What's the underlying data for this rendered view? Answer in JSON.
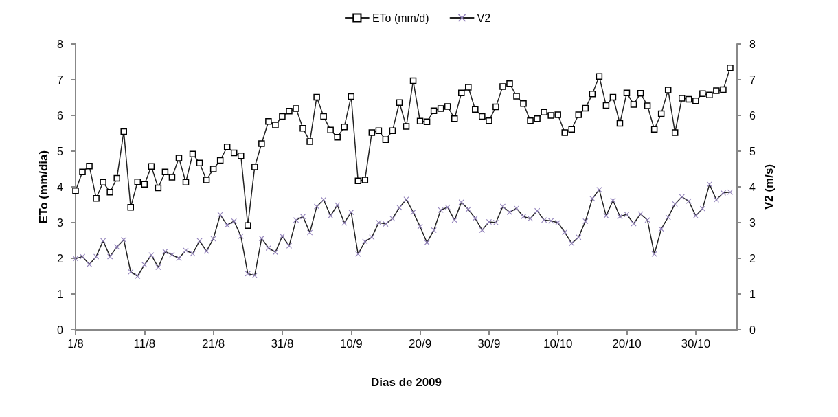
{
  "chart_data": {
    "type": "line",
    "xlabel": "Dias de 2009",
    "ylabel": "ETo (mm/dia)",
    "y2label": "V2 (m/s)",
    "x": [
      "2009-08-01",
      "2009-08-02",
      "2009-08-03",
      "2009-08-04",
      "2009-08-05",
      "2009-08-06",
      "2009-08-07",
      "2009-08-08",
      "2009-08-09",
      "2009-08-10",
      "2009-08-11",
      "2009-08-12",
      "2009-08-13",
      "2009-08-14",
      "2009-08-15",
      "2009-08-16",
      "2009-08-17",
      "2009-08-18",
      "2009-08-19",
      "2009-08-20",
      "2009-08-21",
      "2009-08-22",
      "2009-08-23",
      "2009-08-24",
      "2009-08-25",
      "2009-08-26",
      "2009-08-27",
      "2009-08-28",
      "2009-08-29",
      "2009-08-30",
      "2009-08-31",
      "2009-09-01",
      "2009-09-02",
      "2009-09-03",
      "2009-09-04",
      "2009-09-05",
      "2009-09-06",
      "2009-09-07",
      "2009-09-08",
      "2009-09-09",
      "2009-09-10",
      "2009-09-11",
      "2009-09-12",
      "2009-09-13",
      "2009-09-14",
      "2009-09-15",
      "2009-09-16",
      "2009-09-17",
      "2009-09-18",
      "2009-09-19",
      "2009-09-20",
      "2009-09-21",
      "2009-09-22",
      "2009-09-23",
      "2009-09-24",
      "2009-09-25",
      "2009-09-26",
      "2009-09-27",
      "2009-09-28",
      "2009-09-29",
      "2009-09-30",
      "2009-10-01",
      "2009-10-02",
      "2009-10-03",
      "2009-10-04",
      "2009-10-05",
      "2009-10-06",
      "2009-10-07",
      "2009-10-08",
      "2009-10-09",
      "2009-10-10",
      "2009-10-11",
      "2009-10-12",
      "2009-10-13",
      "2009-10-14",
      "2009-10-15",
      "2009-10-16",
      "2009-10-17",
      "2009-10-18",
      "2009-10-19",
      "2009-10-20",
      "2009-10-21",
      "2009-10-22",
      "2009-10-23",
      "2009-10-24",
      "2009-10-25",
      "2009-10-26",
      "2009-10-27",
      "2009-10-28",
      "2009-10-29",
      "2009-10-30",
      "2009-10-31",
      "2009-11-01",
      "2009-11-02",
      "2009-11-03",
      "2009-11-04"
    ],
    "series": [
      {
        "name": "ETo (mm/d)",
        "color": "#000000",
        "marker": "square",
        "values": [
          3.89,
          4.42,
          4.58,
          3.68,
          4.13,
          3.85,
          4.24,
          5.55,
          3.43,
          4.14,
          4.07,
          4.57,
          3.97,
          4.42,
          4.27,
          4.81,
          4.13,
          4.92,
          4.67,
          4.19,
          4.5,
          4.74,
          5.12,
          4.95,
          4.87,
          2.92,
          4.56,
          5.21,
          5.83,
          5.73,
          5.97,
          6.12,
          6.19,
          5.64,
          5.27,
          6.51,
          5.97,
          5.59,
          5.39,
          5.68,
          6.53,
          4.17,
          4.19,
          5.52,
          5.57,
          5.32,
          5.57,
          6.36,
          5.69,
          6.97,
          5.84,
          5.82,
          6.13,
          6.19,
          6.25,
          5.91,
          6.63,
          6.79,
          6.17,
          5.97,
          5.85,
          6.24,
          6.81,
          6.89,
          6.54,
          6.33,
          5.85,
          5.91,
          6.09,
          6.0,
          6.02,
          5.52,
          5.61,
          6.02,
          6.2,
          6.6,
          7.09,
          6.28,
          6.51,
          5.78,
          6.63,
          6.31,
          6.62,
          6.27,
          5.61,
          6.05,
          6.71,
          5.52,
          6.48,
          6.45,
          6.41,
          6.61,
          6.57,
          6.69,
          6.72,
          7.33
        ]
      },
      {
        "name": "V2",
        "color": "#9484bc",
        "marker": "cross",
        "axis": "y2",
        "values": [
          1.99,
          2.05,
          1.83,
          2.05,
          2.49,
          2.05,
          2.32,
          2.52,
          1.62,
          1.5,
          1.82,
          2.09,
          1.75,
          2.19,
          2.1,
          2.0,
          2.22,
          2.13,
          2.49,
          2.2,
          2.55,
          3.22,
          2.93,
          3.04,
          2.62,
          1.57,
          1.52,
          2.56,
          2.29,
          2.17,
          2.62,
          2.35,
          3.07,
          3.17,
          2.72,
          3.45,
          3.64,
          3.19,
          3.49,
          2.99,
          3.29,
          2.12,
          2.47,
          2.59,
          3.0,
          2.96,
          3.11,
          3.42,
          3.65,
          3.29,
          2.89,
          2.44,
          2.79,
          3.35,
          3.43,
          3.07,
          3.57,
          3.37,
          3.12,
          2.79,
          3.02,
          3.0,
          3.45,
          3.29,
          3.4,
          3.17,
          3.11,
          3.33,
          3.07,
          3.05,
          3.0,
          2.73,
          2.42,
          2.59,
          3.04,
          3.67,
          3.92,
          3.19,
          3.62,
          3.17,
          3.23,
          2.97,
          3.24,
          3.07,
          2.12,
          2.82,
          3.15,
          3.52,
          3.72,
          3.6,
          3.19,
          3.39,
          4.07,
          3.64,
          3.83,
          3.85
        ]
      }
    ],
    "xlim": [
      "2009-08-01",
      "2009-11-05"
    ],
    "xticks": [
      {
        "value": "2009-08-01",
        "label": "1/8"
      },
      {
        "value": "2009-08-11",
        "label": "11/8"
      },
      {
        "value": "2009-08-21",
        "label": "21/8"
      },
      {
        "value": "2009-08-31",
        "label": "31/8"
      },
      {
        "value": "2009-09-10",
        "label": "10/9"
      },
      {
        "value": "2009-09-20",
        "label": "20/9"
      },
      {
        "value": "2009-09-30",
        "label": "30/9"
      },
      {
        "value": "2009-10-10",
        "label": "10/10"
      },
      {
        "value": "2009-10-20",
        "label": "20/10"
      },
      {
        "value": "2009-10-30",
        "label": "30/10"
      }
    ],
    "ylim": [
      0,
      8
    ],
    "yticks": [
      0,
      1,
      2,
      3,
      4,
      5,
      6,
      7,
      8
    ],
    "y2lim": [
      0,
      8
    ],
    "y2ticks": [
      0,
      1,
      2,
      3,
      4,
      5,
      6,
      7,
      8
    ],
    "legend": "top",
    "grid": false,
    "line_style": "solid"
  }
}
